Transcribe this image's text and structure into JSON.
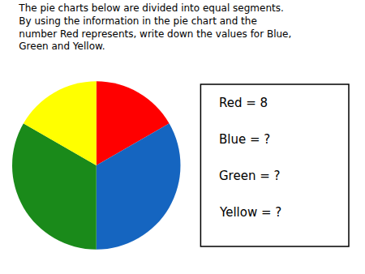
{
  "chart_data": {
    "type": "pie",
    "title": [
      "The pie charts below are divided into equal segments.",
      "By using the information in the pie chart and the",
      "number Red represents, write down the values for Blue,",
      "Green and Yellow."
    ],
    "values": [
      1,
      2,
      2,
      1
    ],
    "colors": [
      "#ff0000",
      "#1565c0",
      "#1a8a1a",
      "#ffff00"
    ],
    "annotations": [
      "Red = 8",
      "Blue = ?",
      "Green = ?",
      "Yellow = ?"
    ]
  }
}
